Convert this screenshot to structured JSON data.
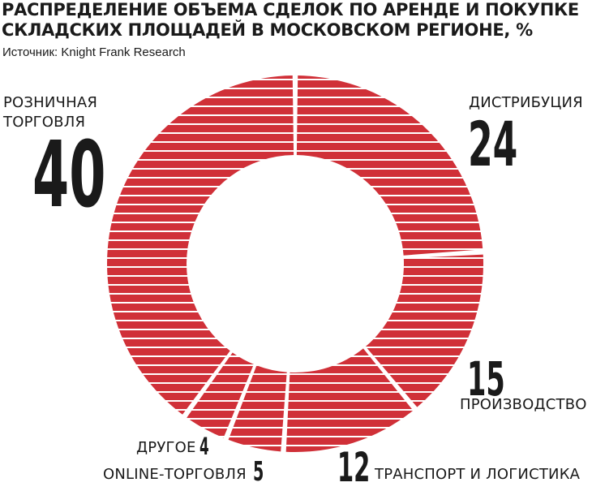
{
  "header": {
    "title_line1": "РАСПРЕДЕЛЕНИЕ ОБЪЕМА СДЕЛОК ПО АРЕНДЕ И ПОКУПКЕ",
    "title_line2": "СКЛАДСКИХ ПЛОЩАДЕЙ В МОСКОВСКОМ РЕГИОНЕ, %",
    "source": "Источник: Knight Frank Research"
  },
  "labels": {
    "retail_line1": "РОЗНИЧНАЯ",
    "retail_line2": "ТОРГОВЛЯ",
    "distribution": "ДИСТРИБУЦИЯ",
    "production": "ПРОИЗВОДСТВО",
    "transport": "ТРАНСПОРТ И ЛОГИСТИКА",
    "online": "ONLINE-ТОРГОВЛЯ",
    "other": "ДРУГОЕ"
  },
  "colors": {
    "segment": "#d03038",
    "stripe": "#ffffff"
  },
  "chart_data": {
    "type": "pie",
    "style": "donut",
    "unit": "%",
    "categories": [
      "ДИСТРИБУЦИЯ",
      "ПРОИЗВОДСТВО",
      "ТРАНСПОРТ И ЛОГИСТИКА",
      "ONLINE-ТОРГОВЛЯ",
      "ДРУГОЕ",
      "РОЗНИЧНАЯ ТОРГОВЛЯ"
    ],
    "values": [
      24,
      15,
      12,
      5,
      4,
      40
    ],
    "value_labels": [
      "24",
      "15",
      "12",
      "5",
      "4",
      "40"
    ]
  }
}
